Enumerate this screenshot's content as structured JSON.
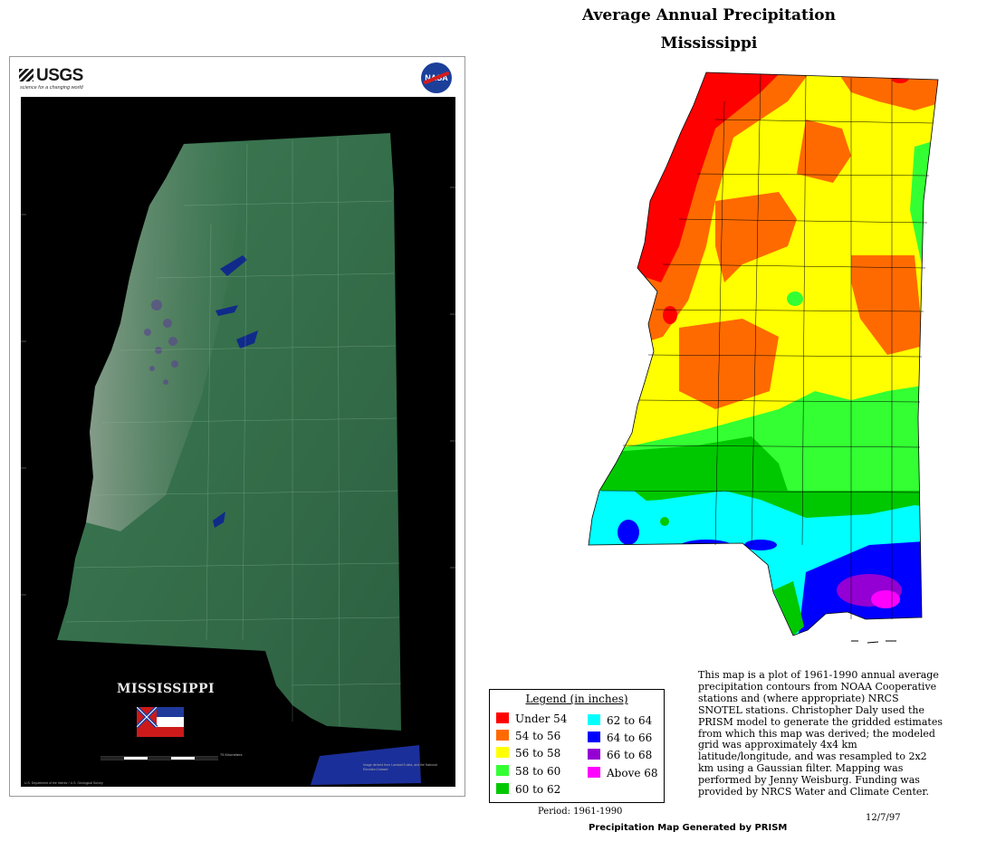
{
  "poster": {
    "usgs_logo": "USGS",
    "usgs_tagline": "science for a changing world",
    "nasa_logo": "NASA",
    "state_title": "MISSISSIPPI",
    "scale_label": "75 Kilometers",
    "credit_right": "Image derived from Landsat 5 data, and the National Elevation Dataset",
    "credit_left": "U.S. Department of the Interior / U.S. Geological Survey"
  },
  "map": {
    "title_line1": "Average Annual Precipitation",
    "title_line2": "Mississippi"
  },
  "legend": {
    "title": "Legend (in inches)",
    "items": [
      {
        "label": "Under 54",
        "color": "#ff0000"
      },
      {
        "label": "54 to 56",
        "color": "#ff6a00"
      },
      {
        "label": "56 to 58",
        "color": "#ffff00"
      },
      {
        "label": "58 to 60",
        "color": "#33ff33"
      },
      {
        "label": "60 to 62",
        "color": "#00c800"
      },
      {
        "label": "62 to 64",
        "color": "#00ffff"
      },
      {
        "label": "64 to 66",
        "color": "#0000ff"
      },
      {
        "label": "66 to 68",
        "color": "#9400d3"
      },
      {
        "label": "Above 68",
        "color": "#ff00ff"
      }
    ]
  },
  "period": "Period: 1961-1990",
  "description": "This map is a plot of 1961-1990 annual average precipitation contours from NOAA Cooperative stations and (where appropriate) NRCS SNOTEL stations. Christopher Daly used the PRISM model to generate the gridded estimates from which this map was derived; the modeled grid was approximately 4x4 km latitude/longitude, and was resampled to 2x2 km using a Gaussian filter. Mapping was performed by Jenny Weisburg. Funding was provided by NRCS Water and Climate Center.",
  "date": "12/7/97",
  "generated_by": "Precipitation Map Generated by PRISM"
}
